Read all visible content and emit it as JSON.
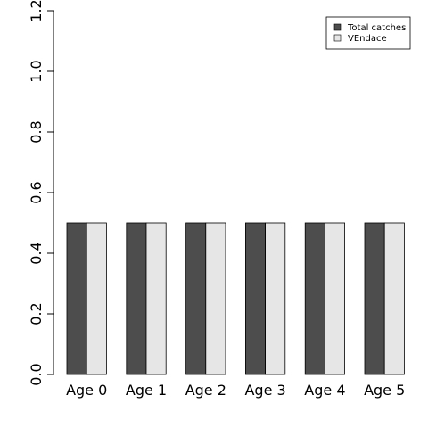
{
  "chart_data": {
    "type": "bar",
    "categories": [
      "Age 0",
      "Age 1",
      "Age 2",
      "Age 3",
      "Age 4",
      "Age 5"
    ],
    "series": [
      {
        "name": "Total catches",
        "color": "#4d4d4d",
        "values": [
          0.5,
          0.5,
          0.5,
          0.5,
          0.5,
          0.5
        ]
      },
      {
        "name": "VEndace",
        "color": "#e6e6e6",
        "values": [
          0.5,
          0.5,
          0.5,
          0.5,
          0.5,
          0.5
        ]
      }
    ],
    "ylim": [
      0,
      1.2
    ],
    "yticks": [
      "0.0",
      "0.2",
      "0.4",
      "0.6",
      "0.8",
      "1.0",
      "1.2"
    ],
    "legend_position": "top-right",
    "grid": false
  }
}
